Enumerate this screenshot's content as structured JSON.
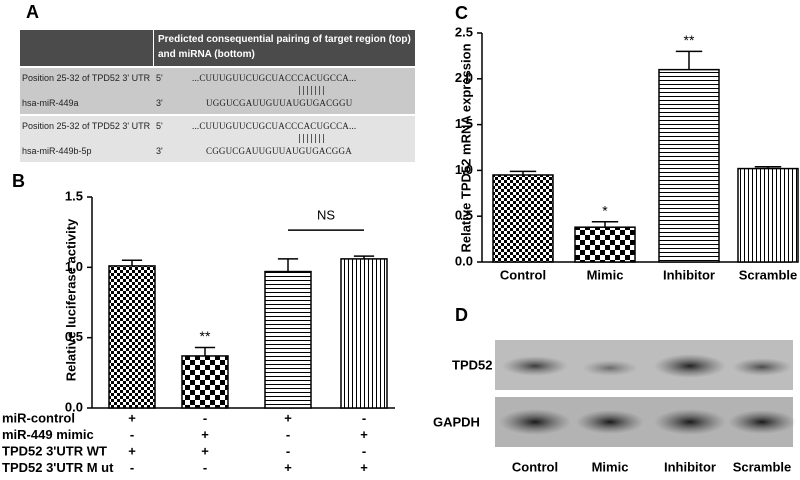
{
  "panel_a": {
    "label": "A",
    "header": "Predicted consequential pairing of target region (top) and miRNA (bottom)",
    "rows": [
      {
        "target": "Position 25-32 of TPD52 3' UTR",
        "target_strand": "5'",
        "target_seq": "...CUUUGUUCUGCUACCCACUGCCA...",
        "mirna": "hsa-miR-449a",
        "mirna_strand": "3'",
        "mirna_seq": "UGGUCGAUUGUUAUGUGACGGU"
      },
      {
        "target": "Position 25-32 of TPD52 3' UTR",
        "target_strand": "5'",
        "target_seq": "...CUUUGUUCUGCUACCCACUGCCA...",
        "mirna": "hsa-miR-449b-5p",
        "mirna_strand": "3'",
        "mirna_seq": "CGGUCGAUUGUUAUGUGACGGA"
      }
    ]
  },
  "chart_data": [
    {
      "type": "bar",
      "label": "B",
      "y_label": "Relative luciferase activity",
      "categories": [
        null,
        null,
        null,
        null
      ],
      "values": [
        1.01,
        0.37,
        0.97,
        1.06
      ],
      "errors": [
        0.04,
        0.06,
        0.09,
        0.02
      ],
      "value_annotations": [
        null,
        "**",
        null,
        null
      ],
      "bracket_annotation": "NS",
      "color": "#000000",
      "ylim": [
        0,
        1.5
      ],
      "yticks": [
        {
          "value": 0,
          "label": "0.0"
        },
        0.5,
        {
          "value": 1,
          "label": "1.0"
        },
        1.5
      ],
      "conditions": [
        {
          "name": "miR-control",
          "marks": [
            "+",
            "-",
            "+",
            "-"
          ]
        },
        {
          "name": "miR-449 mimic",
          "marks": [
            "-",
            "+",
            "-",
            "+"
          ]
        },
        {
          "name": "TPD52 3'UTR WT",
          "marks": [
            "+",
            "+",
            "-",
            "-"
          ]
        },
        {
          "name": "TPD52 3'UTR M ut",
          "marks": [
            "-",
            "-",
            "+",
            "+"
          ]
        }
      ]
    },
    {
      "type": "bar",
      "label": "C",
      "y_label": "Relative TPD52 mRNA expression",
      "categories": [
        "Control",
        "Mimic",
        "Inhibitor",
        "Scramble"
      ],
      "values": [
        0.95,
        0.38,
        2.1,
        1.02
      ],
      "errors": [
        0.04,
        0.06,
        0.2,
        0.02
      ],
      "value_annotations": [
        null,
        "*",
        "**",
        null
      ],
      "color": "#000000",
      "ylim": [
        0,
        2.5
      ],
      "yticks": [
        {
          "value": 0,
          "label": "0.0"
        },
        0.5,
        {
          "value": 1,
          "label": "1.0"
        },
        1.5,
        {
          "value": 2,
          "label": "2.0"
        },
        2.5
      ]
    }
  ],
  "panel_d": {
    "label": "D",
    "rows": [
      "TPD52",
      "GAPDH"
    ],
    "lanes": [
      "Control",
      "Mimic",
      "Inhibitor",
      "Scramble"
    ]
  }
}
